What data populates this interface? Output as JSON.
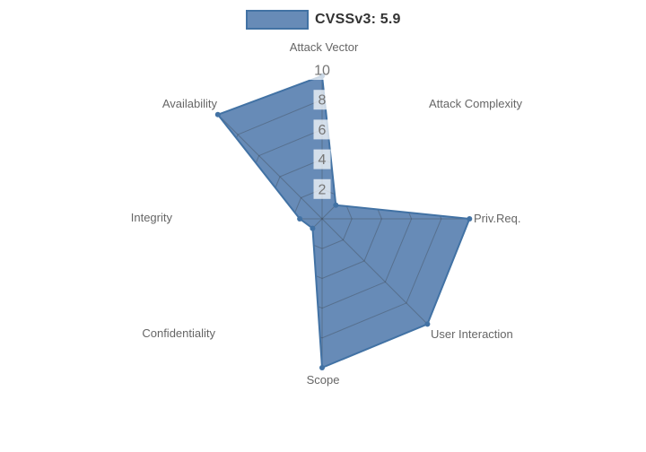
{
  "legend": {
    "label": "CVSSv3: 5.9"
  },
  "colors": {
    "series_fill": "rgba(69,114,167,0.82)",
    "series_stroke": "#4272a4",
    "grid_line": "rgba(50,50,50,0.30)",
    "axis_label": "#666666",
    "tick_label": "#757575",
    "tick_backdrop": "rgba(255,255,255,0.72)",
    "legend_text": "#333333"
  },
  "chart_data": {
    "type": "radar",
    "title": "CVSSv3: 5.9",
    "legend_position": "top",
    "grid": true,
    "rmin": 0,
    "rmax": 10,
    "ticks": [
      2,
      4,
      6,
      8,
      10
    ],
    "categories": [
      "Attack Vector",
      "Attack Complexity",
      "Priv.Req.",
      "User Interaction",
      "Scope",
      "Confidentiality",
      "Integrity",
      "Availability"
    ],
    "series": [
      {
        "name": "CVSSv3: 5.9",
        "values": [
          9.6,
          1.3,
          9.9,
          10,
          10,
          0.9,
          1.5,
          9.9
        ]
      }
    ]
  }
}
